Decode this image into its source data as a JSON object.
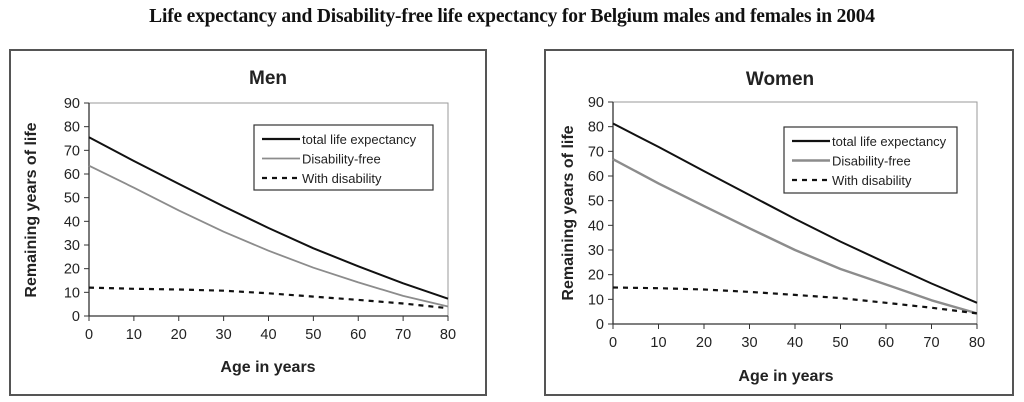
{
  "title": "Life expectancy and Disability-free life expectancy for Belgium males and females in 2004",
  "chart_data": [
    {
      "type": "line",
      "title": "Men",
      "xlabel": "Age in years",
      "ylabel": "Remaining years of life",
      "xlim": [
        0,
        80
      ],
      "ylim": [
        0,
        90
      ],
      "xticks": [
        0,
        10,
        20,
        30,
        40,
        50,
        60,
        70,
        80
      ],
      "yticks": [
        0,
        10,
        20,
        30,
        40,
        50,
        60,
        70,
        80,
        90
      ],
      "grid": false,
      "legend_position": "top-right",
      "x": [
        0,
        10,
        20,
        30,
        40,
        50,
        60,
        70,
        80
      ],
      "series": [
        {
          "name": "total life expectancy",
          "style": "solid",
          "color": "#111111",
          "values": [
            75.5,
            65.5,
            55.8,
            46.3,
            37.2,
            28.6,
            21.0,
            13.8,
            7.3
          ]
        },
        {
          "name": "Disability-free",
          "style": "solid",
          "color": "#8c8c8c",
          "values": [
            63.5,
            54.2,
            44.6,
            35.6,
            27.6,
            20.4,
            14.2,
            8.5,
            4.0
          ]
        },
        {
          "name": "With disability",
          "style": "dashed",
          "color": "#111111",
          "values": [
            12.0,
            11.5,
            11.2,
            10.7,
            9.6,
            8.2,
            6.8,
            5.3,
            3.3
          ]
        }
      ]
    },
    {
      "type": "line",
      "title": "Women",
      "xlabel": "Age in years",
      "ylabel": "Remaining years of life",
      "xlim": [
        0,
        80
      ],
      "ylim": [
        0,
        90
      ],
      "xticks": [
        0,
        10,
        20,
        30,
        40,
        50,
        60,
        70,
        80
      ],
      "yticks": [
        0,
        10,
        20,
        30,
        40,
        50,
        60,
        70,
        80,
        90
      ],
      "grid": false,
      "legend_position": "top-right",
      "x": [
        0,
        10,
        20,
        30,
        40,
        50,
        60,
        70,
        80
      ],
      "series": [
        {
          "name": "total life expectancy",
          "style": "solid",
          "color": "#111111",
          "values": [
            81.3,
            71.8,
            62.0,
            52.3,
            42.6,
            33.4,
            24.8,
            16.4,
            8.6
          ]
        },
        {
          "name": "Disability-free",
          "style": "solid",
          "color": "#8c8c8c",
          "values": [
            66.8,
            57.0,
            47.8,
            38.8,
            30.0,
            22.3,
            16.0,
            9.6,
            4.3
          ]
        },
        {
          "name": "With disability",
          "style": "dashed",
          "color": "#111111",
          "values": [
            14.8,
            14.5,
            14.0,
            13.0,
            11.8,
            10.5,
            8.6,
            6.6,
            4.3
          ]
        }
      ]
    }
  ]
}
